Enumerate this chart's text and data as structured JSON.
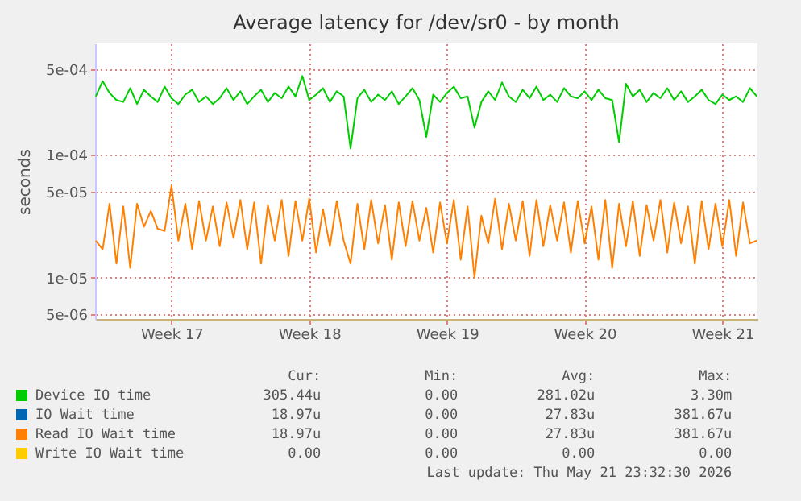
{
  "chart_data": {
    "type": "line",
    "title": "Average latency for /dev/sr0 - by month",
    "ylabel": "seconds",
    "log": "y",
    "grid": true,
    "legend": "bottom",
    "categories": [
      null,
      null,
      null,
      null,
      null,
      null,
      null,
      null,
      null,
      null,
      null,
      "Week 17",
      null,
      null,
      null,
      null,
      null,
      null,
      null,
      null,
      null,
      null,
      null,
      null,
      null,
      null,
      null,
      null,
      null,
      null,
      null,
      "Week 18",
      null,
      null,
      null,
      null,
      null,
      null,
      null,
      null,
      null,
      null,
      null,
      null,
      null,
      null,
      null,
      null,
      null,
      null,
      null,
      "Week 19",
      null,
      null,
      null,
      null,
      null,
      null,
      null,
      null,
      null,
      null,
      null,
      null,
      null,
      null,
      null,
      null,
      null,
      null,
      null,
      "Week 20",
      null,
      null,
      null,
      null,
      null,
      null,
      null,
      null,
      null,
      null,
      null,
      null,
      null,
      null,
      null,
      null,
      null,
      null,
      null,
      "Week 21",
      null,
      null,
      null,
      null,
      null
    ],
    "ylim": [
      4.6e-06,
      0.00081
    ],
    "yticks": [
      {
        "value": 5e-06,
        "label": "5e-06"
      },
      {
        "value": 1e-05,
        "label": "1e-05"
      },
      {
        "value": 5e-05,
        "label": "5e-05"
      },
      {
        "value": 0.0001,
        "label": "1e-04"
      },
      {
        "value": 0.0005,
        "label": "5e-04"
      }
    ],
    "series": [
      {
        "name": "Device IO time",
        "color": "#00cc00",
        "values": [
          0.0003,
          0.0004,
          0.00032,
          0.00028,
          0.00027,
          0.00035,
          0.00026,
          0.00034,
          0.0003,
          0.00027,
          0.00036,
          0.00029,
          0.00026,
          0.00031,
          0.00034,
          0.00027,
          0.0003,
          0.00026,
          0.00029,
          0.00035,
          0.00028,
          0.00033,
          0.00026,
          0.0003,
          0.00034,
          0.00027,
          0.00032,
          0.00029,
          0.00036,
          0.0003,
          0.00044,
          0.00028,
          0.00031,
          0.00035,
          0.00027,
          0.00033,
          0.0003,
          0.000113,
          0.00029,
          0.00034,
          0.00027,
          0.00031,
          0.00028,
          0.00033,
          0.00026,
          0.0003,
          0.00035,
          0.00028,
          0.00014,
          0.00031,
          0.00027,
          0.00032,
          0.00036,
          0.00029,
          0.0003,
          0.000167,
          0.00027,
          0.00033,
          0.00028,
          0.00039,
          0.0003,
          0.00027,
          0.00034,
          0.00029,
          0.00036,
          0.00028,
          0.00031,
          0.00027,
          0.00035,
          0.0003,
          0.00029,
          0.00033,
          0.00028,
          0.00034,
          0.00029,
          0.00028,
          0.000127,
          0.00038,
          0.0003,
          0.00034,
          0.00027,
          0.00032,
          0.00029,
          0.00035,
          0.00028,
          0.00033,
          0.00027,
          0.0003,
          0.00034,
          0.00028,
          0.00026,
          0.00031,
          0.00028,
          0.0003,
          0.00027,
          0.00035,
          0.0003
        ]
      },
      {
        "name": "IO Wait time",
        "color": "#0066b3",
        "values": [
          null,
          null,
          null,
          null,
          null,
          null,
          null,
          null,
          null,
          null,
          null,
          null,
          null,
          null,
          null,
          null,
          null,
          null,
          null,
          null,
          null,
          null,
          null,
          null,
          null,
          null,
          null,
          null,
          null,
          null,
          null,
          null,
          null,
          null,
          null,
          null,
          null,
          null,
          null,
          null,
          null,
          null,
          null,
          null,
          null,
          null,
          null,
          null,
          null,
          null,
          null,
          null,
          null,
          null,
          null,
          null,
          null,
          null,
          null,
          null,
          null,
          null,
          null,
          null,
          null,
          null,
          null,
          null,
          null,
          null,
          null,
          null,
          null,
          null,
          null,
          null,
          null,
          null,
          null,
          null,
          null,
          null,
          null,
          null,
          null,
          null,
          null,
          null,
          null,
          null,
          null,
          null,
          null,
          null,
          null,
          null,
          null
        ]
      },
      {
        "name": "Read IO Wait time",
        "color": "#ff8000",
        "values": [
          2e-05,
          1.7e-05,
          4e-05,
          1.3e-05,
          3.8e-05,
          1.2e-05,
          4e-05,
          2.6e-05,
          3.5e-05,
          2.5e-05,
          2.4e-05,
          5.6e-05,
          2e-05,
          4e-05,
          1.7e-05,
          4.2e-05,
          2e-05,
          3.8e-05,
          1.8e-05,
          4.1e-05,
          2.1e-05,
          4.3e-05,
          1.7e-05,
          4.1e-05,
          1.3e-05,
          3.9e-05,
          2e-05,
          4.3e-05,
          1.5e-05,
          4.2e-05,
          2e-05,
          4.4e-05,
          1.6e-05,
          3.6e-05,
          1.8e-05,
          4.2e-05,
          2e-05,
          1.3e-05,
          4e-05,
          1.7e-05,
          4.3e-05,
          1.9e-05,
          3.9e-05,
          1.4e-05,
          4.1e-05,
          1.8e-05,
          4.2e-05,
          2e-05,
          3.7e-05,
          1.6e-05,
          4.1e-05,
          1.9e-05,
          4.3e-05,
          1.4e-05,
          3.8e-05,
          1e-05,
          3.2e-05,
          1.9e-05,
          4.4e-05,
          1.7e-05,
          4e-05,
          2e-05,
          4.2e-05,
          1.5e-05,
          4.3e-05,
          1.8e-05,
          3.9e-05,
          2e-05,
          4.1e-05,
          1.6e-05,
          4.2e-05,
          1.9e-05,
          3.8e-05,
          1.4e-05,
          4.3e-05,
          1.2e-05,
          4e-05,
          1.8e-05,
          4.2e-05,
          1.5e-05,
          3.9e-05,
          2e-05,
          4.3e-05,
          1.6e-05,
          4.1e-05,
          1.9e-05,
          3.8e-05,
          1.3e-05,
          4.2e-05,
          1.7e-05,
          4e-05,
          1.8e-05,
          4.3e-05,
          1.5e-05,
          4.1e-05,
          1.9e-05,
          2e-05
        ]
      },
      {
        "name": "Write IO Wait time",
        "color": "#ffcc00",
        "values": [
          null,
          null,
          null,
          null,
          null,
          null,
          null,
          null,
          null,
          null,
          null,
          null,
          null,
          null,
          null,
          null,
          null,
          null,
          null,
          null,
          null,
          null,
          null,
          null,
          null,
          null,
          null,
          null,
          null,
          null,
          null,
          null,
          null,
          null,
          null,
          null,
          null,
          null,
          null,
          null,
          null,
          null,
          null,
          null,
          null,
          null,
          null,
          null,
          null,
          null,
          null,
          null,
          null,
          null,
          null,
          null,
          null,
          null,
          null,
          null,
          null,
          null,
          null,
          null,
          null,
          null,
          null,
          null,
          null,
          null,
          null,
          null,
          null,
          null,
          null,
          null,
          null,
          null,
          null,
          null,
          null,
          null,
          null,
          null,
          null,
          null,
          null,
          null,
          null,
          null,
          null,
          null,
          null,
          null,
          null,
          null,
          null
        ]
      }
    ],
    "annotations": [
      "Cur:",
      "Min:",
      "Avg:",
      "Max:",
      "305.44u",
      "0.00",
      "281.02u",
      "3.30m",
      "18.97u",
      "0.00",
      "27.83u",
      "381.67u",
      "18.97u",
      "0.00",
      "27.83u",
      "381.67u",
      "0.00",
      "0.00",
      "0.00",
      "0.00",
      "Last update: Thu May 21 23:32:30 2026"
    ]
  }
}
